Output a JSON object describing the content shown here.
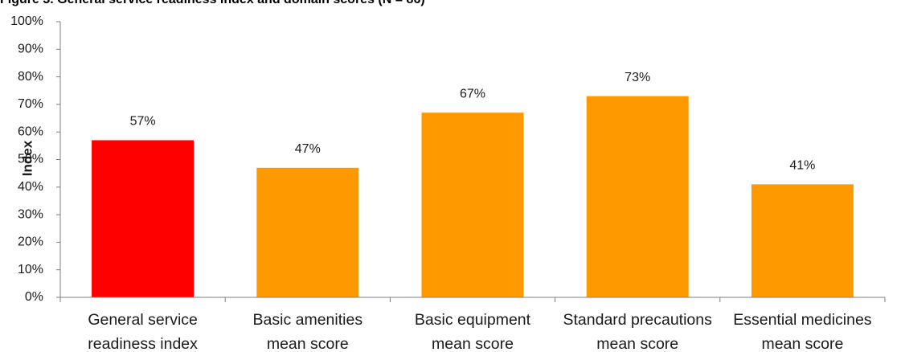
{
  "chart_data": {
    "type": "bar",
    "title": "Figure 3. General service readiness index and domain scores (N = 86)",
    "ylabel": "Index",
    "xlabel": "",
    "ylim": [
      0,
      100
    ],
    "y_ticks": [
      "0%",
      "10%",
      "20%",
      "30%",
      "40%",
      "50%",
      "60%",
      "70%",
      "80%",
      "90%",
      "100%"
    ],
    "categories": [
      [
        "General service",
        "readiness index"
      ],
      [
        "Basic amenities",
        "mean score"
      ],
      [
        "Basic equipment",
        "mean score"
      ],
      [
        "Standard precautions",
        "mean score"
      ],
      [
        "Essential medicines",
        "mean score"
      ]
    ],
    "values": [
      57,
      47,
      67,
      73,
      41
    ],
    "data_labels": [
      "57%",
      "47%",
      "67%",
      "73%",
      "41%"
    ],
    "colors": [
      "#ff0000",
      "#ff9900",
      "#ff9900",
      "#ff9900",
      "#ff9900"
    ],
    "axis_color": "#7f7f7f",
    "grid": false,
    "legend": "none"
  }
}
